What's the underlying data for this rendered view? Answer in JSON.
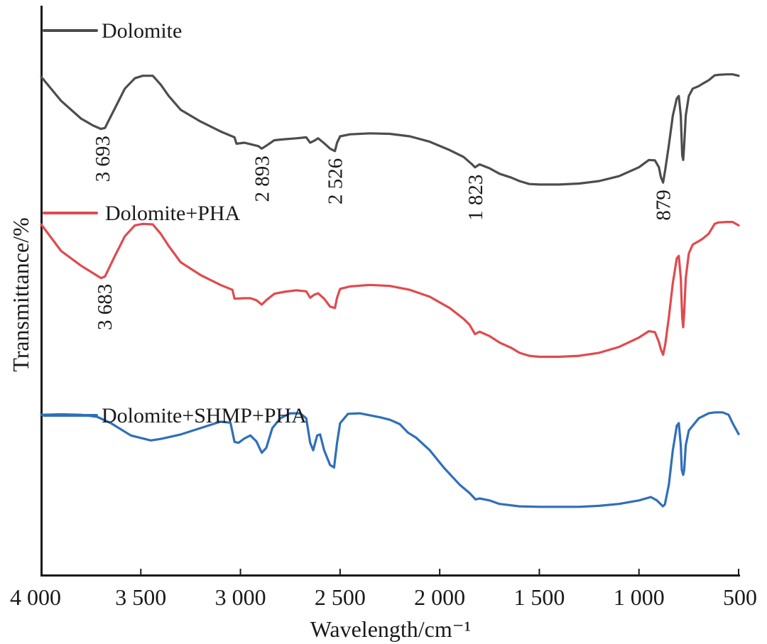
{
  "chart_data": {
    "type": "line",
    "title": "",
    "xlabel": "Wavelength/cm⁻¹",
    "ylabel": "Transmittance/%",
    "xlim": [
      4000,
      500
    ],
    "x_reversed": true,
    "ylim": [
      0,
      100
    ],
    "y_units": "arbitrary (offset stacked spectra, no y tick labels)",
    "xticks": [
      4000,
      3500,
      3000,
      2500,
      2000,
      1500,
      1000,
      500
    ],
    "xtick_labels": [
      "4 000",
      "3 500",
      "3 000",
      "2 500",
      "2 000",
      "1 500",
      "1 000",
      "500"
    ],
    "grid": false,
    "legend_position": "inline, above each spectrum",
    "series": [
      {
        "name": "Dolomite",
        "color": "#4d4d4d",
        "points": [
          [
            4000,
            91.9
          ],
          [
            3900,
            87.0
          ],
          [
            3800,
            83.4
          ],
          [
            3740,
            82.0
          ],
          [
            3700,
            81.3
          ],
          [
            3680,
            81.5
          ],
          [
            3630,
            85.5
          ],
          [
            3580,
            89.5
          ],
          [
            3530,
            91.6
          ],
          [
            3490,
            92.1
          ],
          [
            3440,
            92.1
          ],
          [
            3400,
            90.3
          ],
          [
            3360,
            88.0
          ],
          [
            3300,
            85.2
          ],
          [
            3200,
            82.8
          ],
          [
            3100,
            80.8
          ],
          [
            3030,
            79.6
          ],
          [
            3020,
            78.3
          ],
          [
            2980,
            78.5
          ],
          [
            2950,
            78.2
          ],
          [
            2910,
            77.8
          ],
          [
            2893,
            77.3
          ],
          [
            2870,
            77.9
          ],
          [
            2830,
            79.0
          ],
          [
            2780,
            79.2
          ],
          [
            2720,
            79.4
          ],
          [
            2670,
            79.6
          ],
          [
            2650,
            78.5
          ],
          [
            2630,
            78.9
          ],
          [
            2610,
            79.4
          ],
          [
            2580,
            78.4
          ],
          [
            2550,
            77.3
          ],
          [
            2526,
            76.8
          ],
          [
            2515,
            78.5
          ],
          [
            2500,
            79.8
          ],
          [
            2450,
            80.2
          ],
          [
            2350,
            80.4
          ],
          [
            2250,
            80.3
          ],
          [
            2150,
            79.8
          ],
          [
            2050,
            78.7
          ],
          [
            1950,
            77.0
          ],
          [
            1880,
            75.6
          ],
          [
            1840,
            74.2
          ],
          [
            1823,
            73.5
          ],
          [
            1800,
            74.1
          ],
          [
            1750,
            73.3
          ],
          [
            1700,
            72.2
          ],
          [
            1640,
            71.4
          ],
          [
            1600,
            70.7
          ],
          [
            1550,
            70.1
          ],
          [
            1500,
            70.0
          ],
          [
            1400,
            70.0
          ],
          [
            1300,
            70.2
          ],
          [
            1200,
            70.7
          ],
          [
            1100,
            71.7
          ],
          [
            1000,
            73.5
          ],
          [
            950,
            75.0
          ],
          [
            920,
            74.9
          ],
          [
            900,
            73.5
          ],
          [
            890,
            71.5
          ],
          [
            879,
            70.4
          ],
          [
            868,
            73.0
          ],
          [
            850,
            78.0
          ],
          [
            830,
            84.0
          ],
          [
            810,
            87.5
          ],
          [
            800,
            88.0
          ],
          [
            790,
            84.0
          ],
          [
            783,
            76.0
          ],
          [
            778,
            75.0
          ],
          [
            773,
            78.0
          ],
          [
            765,
            84.0
          ],
          [
            750,
            88.0
          ],
          [
            730,
            89.5
          ],
          [
            700,
            90.0
          ],
          [
            680,
            90.5
          ],
          [
            650,
            91.2
          ],
          [
            620,
            92.2
          ],
          [
            600,
            92.3
          ],
          [
            560,
            92.4
          ],
          [
            530,
            92.4
          ],
          [
            500,
            92.1
          ]
        ]
      },
      {
        "name": "Dolomite+PHA",
        "color": "#e04a4f",
        "points": [
          [
            4000,
            61.9
          ],
          [
            3900,
            56.5
          ],
          [
            3800,
            53.5
          ],
          [
            3740,
            52.0
          ],
          [
            3700,
            51.0
          ],
          [
            3680,
            51.3
          ],
          [
            3630,
            55.5
          ],
          [
            3580,
            59.5
          ],
          [
            3530,
            61.7
          ],
          [
            3490,
            62.0
          ],
          [
            3440,
            61.9
          ],
          [
            3400,
            60.0
          ],
          [
            3360,
            57.5
          ],
          [
            3300,
            54.2
          ],
          [
            3200,
            51.6
          ],
          [
            3100,
            49.6
          ],
          [
            3040,
            48.6
          ],
          [
            3030,
            46.8
          ],
          [
            2980,
            46.9
          ],
          [
            2950,
            46.9
          ],
          [
            2920,
            46.5
          ],
          [
            2893,
            45.6
          ],
          [
            2870,
            46.5
          ],
          [
            2830,
            47.8
          ],
          [
            2780,
            48.2
          ],
          [
            2720,
            48.5
          ],
          [
            2670,
            48.3
          ],
          [
            2650,
            47.0
          ],
          [
            2630,
            47.6
          ],
          [
            2610,
            47.9
          ],
          [
            2580,
            46.8
          ],
          [
            2550,
            45.2
          ],
          [
            2526,
            44.9
          ],
          [
            2515,
            47.0
          ],
          [
            2500,
            48.8
          ],
          [
            2450,
            49.3
          ],
          [
            2350,
            49.6
          ],
          [
            2250,
            49.4
          ],
          [
            2150,
            48.6
          ],
          [
            2050,
            47.2
          ],
          [
            1950,
            44.9
          ],
          [
            1880,
            42.7
          ],
          [
            1850,
            41.5
          ],
          [
            1823,
            39.6
          ],
          [
            1800,
            40.1
          ],
          [
            1750,
            39.2
          ],
          [
            1700,
            37.9
          ],
          [
            1640,
            36.8
          ],
          [
            1600,
            35.8
          ],
          [
            1550,
            35.2
          ],
          [
            1500,
            35.0
          ],
          [
            1400,
            35.0
          ],
          [
            1300,
            35.2
          ],
          [
            1200,
            35.8
          ],
          [
            1100,
            37.0
          ],
          [
            1000,
            38.9
          ],
          [
            950,
            40.2
          ],
          [
            920,
            40.0
          ],
          [
            900,
            38.0
          ],
          [
            890,
            36.5
          ],
          [
            879,
            35.4
          ],
          [
            868,
            37.5
          ],
          [
            850,
            43.0
          ],
          [
            830,
            50.0
          ],
          [
            810,
            55.0
          ],
          [
            800,
            55.5
          ],
          [
            790,
            51.0
          ],
          [
            783,
            43.0
          ],
          [
            778,
            41.0
          ],
          [
            773,
            44.0
          ],
          [
            765,
            51.0
          ],
          [
            750,
            56.0
          ],
          [
            730,
            57.8
          ],
          [
            700,
            58.5
          ],
          [
            680,
            59.0
          ],
          [
            650,
            60.0
          ],
          [
            620,
            62.0
          ],
          [
            600,
            62.3
          ],
          [
            560,
            62.4
          ],
          [
            530,
            62.4
          ],
          [
            500,
            61.7
          ]
        ]
      },
      {
        "name": "Dolomite+SHMP+PHA",
        "color": "#2f6fb9",
        "points": [
          [
            4000,
            23.2
          ],
          [
            3900,
            23.3
          ],
          [
            3800,
            23.2
          ],
          [
            3720,
            22.8
          ],
          [
            3650,
            21.5
          ],
          [
            3550,
            19.0
          ],
          [
            3450,
            18.0
          ],
          [
            3400,
            18.3
          ],
          [
            3300,
            19.2
          ],
          [
            3200,
            20.5
          ],
          [
            3100,
            21.8
          ],
          [
            3050,
            21.6
          ],
          [
            3030,
            17.7
          ],
          [
            3010,
            17.5
          ],
          [
            2980,
            18.4
          ],
          [
            2950,
            19.0
          ],
          [
            2920,
            17.8
          ],
          [
            2893,
            15.5
          ],
          [
            2870,
            16.5
          ],
          [
            2840,
            20.5
          ],
          [
            2800,
            22.5
          ],
          [
            2750,
            23.5
          ],
          [
            2700,
            23.5
          ],
          [
            2670,
            22.5
          ],
          [
            2650,
            17.5
          ],
          [
            2635,
            16.0
          ],
          [
            2615,
            19.0
          ],
          [
            2600,
            19.2
          ],
          [
            2580,
            16.0
          ],
          [
            2550,
            13.0
          ],
          [
            2530,
            12.5
          ],
          [
            2515,
            17.5
          ],
          [
            2500,
            21.5
          ],
          [
            2460,
            23.4
          ],
          [
            2400,
            23.5
          ],
          [
            2300,
            22.7
          ],
          [
            2250,
            22.2
          ],
          [
            2200,
            21.3
          ],
          [
            2160,
            19.6
          ],
          [
            2120,
            18.6
          ],
          [
            2050,
            16.0
          ],
          [
            1980,
            12.5
          ],
          [
            1900,
            9.0
          ],
          [
            1850,
            7.3
          ],
          [
            1820,
            6.0
          ],
          [
            1800,
            6.2
          ],
          [
            1750,
            5.8
          ],
          [
            1700,
            5.1
          ],
          [
            1600,
            4.6
          ],
          [
            1500,
            4.5
          ],
          [
            1400,
            4.5
          ],
          [
            1300,
            4.5
          ],
          [
            1200,
            4.7
          ],
          [
            1100,
            5.1
          ],
          [
            1000,
            5.8
          ],
          [
            940,
            6.5
          ],
          [
            910,
            5.8
          ],
          [
            880,
            4.6
          ],
          [
            870,
            5.0
          ],
          [
            850,
            9.0
          ],
          [
            830,
            16.0
          ],
          [
            810,
            21.0
          ],
          [
            800,
            21.5
          ],
          [
            790,
            17.0
          ],
          [
            785,
            12.0
          ],
          [
            778,
            11.0
          ],
          [
            773,
            12.0
          ],
          [
            765,
            17.0
          ],
          [
            750,
            20.0
          ],
          [
            720,
            21.5
          ],
          [
            700,
            22.5
          ],
          [
            650,
            23.5
          ],
          [
            620,
            23.7
          ],
          [
            580,
            23.7
          ],
          [
            550,
            23.2
          ],
          [
            530,
            21.5
          ],
          [
            500,
            19.3
          ]
        ]
      }
    ],
    "annotations": [
      {
        "series": "Dolomite",
        "label": "3 693",
        "x": 3693
      },
      {
        "series": "Dolomite",
        "label": "2 893",
        "x": 2893
      },
      {
        "series": "Dolomite",
        "label": "2 526",
        "x": 2526
      },
      {
        "series": "Dolomite",
        "label": "1 823",
        "x": 1823
      },
      {
        "series": "Dolomite",
        "label": "879",
        "x": 879
      },
      {
        "series": "Dolomite+PHA",
        "label": "3 683",
        "x": 3683
      }
    ]
  }
}
